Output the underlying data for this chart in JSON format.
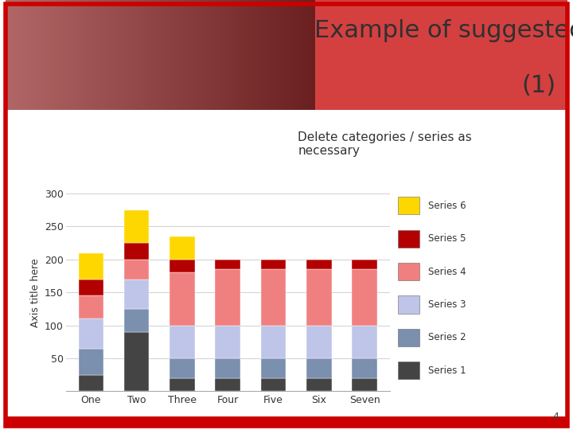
{
  "categories": [
    "One",
    "Two",
    "Three",
    "Four",
    "Five",
    "Six",
    "Seven"
  ],
  "series": {
    "Series 1": [
      25,
      90,
      20,
      20,
      20,
      20,
      20
    ],
    "Series 2": [
      40,
      35,
      30,
      30,
      30,
      30,
      30
    ],
    "Series 3": [
      45,
      45,
      50,
      50,
      50,
      50,
      50
    ],
    "Series 4": [
      35,
      30,
      80,
      85,
      85,
      85,
      85
    ],
    "Series 5": [
      25,
      25,
      20,
      15,
      15,
      15,
      15
    ],
    "Series 6": [
      40,
      50,
      35,
      0,
      0,
      0,
      0
    ]
  },
  "series_order": [
    "Series 1",
    "Series 2",
    "Series 3",
    "Series 4",
    "Series 5",
    "Series 6"
  ],
  "colors": {
    "Series 1": "#444444",
    "Series 2": "#7b8faf",
    "Series 3": "#bfc5e8",
    "Series 4": "#f08080",
    "Series 5": "#b30000",
    "Series 6": "#ffd700"
  },
  "ylim": [
    0,
    300
  ],
  "yticks": [
    0,
    50,
    100,
    150,
    200,
    250,
    300
  ],
  "ylabel": "Axis title here",
  "subtitle": "Delete categories / series as\nnecessary",
  "bar_width": 0.55,
  "page_number": "4",
  "title_line1": "Example of suggested chart formatting",
  "title_line2": "(1)",
  "title_color": "#303030",
  "title_fontsize": 22,
  "subtitle_fontsize": 11,
  "border_color": "#cc0000",
  "banner_color": "#cc3333"
}
